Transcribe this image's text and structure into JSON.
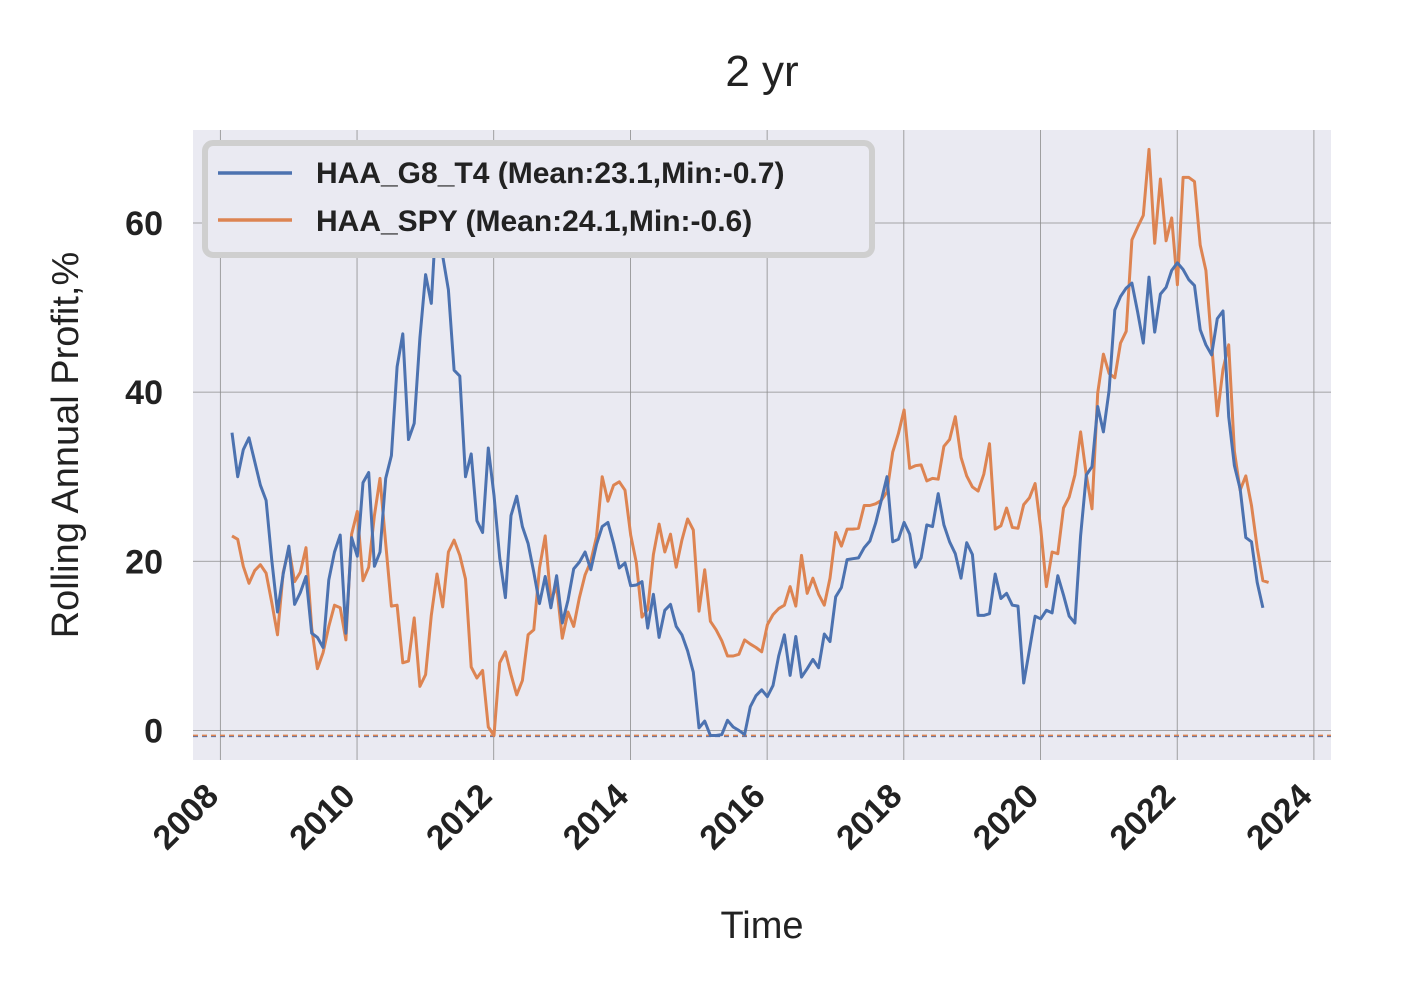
{
  "chart_data": {
    "type": "line",
    "title": "2 yr",
    "xlabel": "Time",
    "ylabel": "Rolling Annual Profit,%",
    "xlim": [
      2007.6,
      2024.25
    ],
    "ylim": [
      -3.5,
      71
    ],
    "xticks": [
      2008,
      2010,
      2012,
      2014,
      2016,
      2018,
      2020,
      2022,
      2024
    ],
    "yticks": [
      0,
      20,
      40,
      60
    ],
    "grid": true,
    "legend_position": "top-left",
    "colors": {
      "background": "#EAEAF2",
      "series1": "#4C72B0",
      "series2": "#DD8452",
      "grid": "#8c8c8c"
    },
    "hlines": [
      {
        "series": "HAA_G8_T4 (Mean:23.1,Min:-0.7)",
        "y": -0.7
      },
      {
        "series": "HAA_SPY (Mean:24.1,Min:-0.6)",
        "y": -0.6
      }
    ],
    "series": [
      {
        "name": "HAA_G8_T4 (Mean:23.1,Min:-0.7)",
        "x_start": 2008.17,
        "x_step": 0.0833333,
        "values": [
          35.2,
          30.0,
          33.2,
          34.6,
          31.8,
          29.0,
          27.2,
          20.1,
          14.0,
          18.5,
          21.8,
          14.9,
          16.3,
          18.2,
          11.5,
          11.0,
          9.8,
          17.8,
          21.1,
          23.1,
          11.5,
          22.8,
          20.6,
          29.3,
          30.5,
          19.4,
          21.1,
          29.8,
          32.5,
          43.0,
          46.9,
          34.4,
          36.3,
          46.4,
          53.9,
          50.5,
          62.5,
          56.1,
          52.1,
          42.6,
          41.9,
          30.0,
          32.7,
          24.8,
          23.4,
          33.4,
          27.8,
          20.4,
          15.7,
          25.4,
          27.7,
          24.1,
          22.1,
          18.7,
          15.0,
          18.2,
          14.5,
          18.3,
          12.7,
          15.4,
          19.1,
          19.9,
          21.1,
          19.0,
          22.0,
          24.1,
          24.6,
          22.1,
          19.2,
          19.8,
          17.1,
          17.2,
          17.6,
          12.1,
          16.1,
          11.0,
          14.2,
          14.9,
          12.3,
          11.3,
          9.4,
          6.9,
          0.3,
          1.1,
          -0.6,
          -0.6,
          -0.5,
          1.2,
          0.4,
          0.0,
          -0.5,
          2.8,
          4.1,
          4.8,
          4.0,
          5.3,
          8.8,
          11.3,
          6.5,
          11.1,
          6.3,
          7.3,
          8.4,
          7.4,
          11.4,
          10.5,
          15.8,
          16.9,
          20.2,
          20.3,
          20.4,
          21.6,
          22.4,
          24.5,
          27.2,
          30.0,
          22.3,
          22.6,
          24.6,
          23.2,
          19.3,
          20.4,
          24.3,
          24.1,
          28.0,
          24.3,
          22.3,
          20.9,
          18.0,
          22.2,
          20.8,
          13.6,
          13.6,
          13.8,
          18.5,
          15.6,
          16.2,
          14.8,
          14.7,
          5.6,
          9.5,
          13.5,
          13.2,
          14.2,
          13.9,
          18.3,
          16.0,
          13.5,
          12.7,
          23.0,
          30.2,
          31.2,
          38.3,
          35.3,
          40.2,
          49.7,
          51.3,
          52.3,
          52.9,
          49.5,
          45.8,
          53.6,
          47.1,
          51.6,
          52.4,
          54.4,
          55.3,
          54.5,
          53.3,
          52.6,
          47.4,
          45.6,
          44.4,
          48.7,
          49.6,
          37.1,
          31.3,
          28.6,
          22.8,
          22.3,
          17.5,
          14.5
        ]
      },
      {
        "name": "HAA_SPY (Mean:24.1,Min:-0.6)",
        "x_start": 2008.17,
        "x_step": 0.0833333,
        "values": [
          23.0,
          22.6,
          19.4,
          17.4,
          18.9,
          19.6,
          18.6,
          15.1,
          11.3,
          18.7,
          21.5,
          17.6,
          18.7,
          21.6,
          12.1,
          7.3,
          9.2,
          12.3,
          14.8,
          14.5,
          10.7,
          23.2,
          25.9,
          17.7,
          19.3,
          25.4,
          29.8,
          22.1,
          14.7,
          14.8,
          8.0,
          8.2,
          13.3,
          5.2,
          6.6,
          13.6,
          18.5,
          14.6,
          21.1,
          22.5,
          20.7,
          17.9,
          7.5,
          6.2,
          7.1,
          0.4,
          -0.6,
          8.0,
          9.3,
          6.6,
          4.2,
          5.9,
          11.3,
          11.9,
          19.2,
          23.0,
          15.3,
          17.1,
          10.9,
          14.0,
          12.3,
          15.7,
          18.4,
          20.0,
          22.9,
          30.0,
          27.1,
          29.0,
          29.4,
          28.4,
          23.1,
          19.8,
          13.4,
          14.3,
          20.8,
          24.4,
          21.1,
          23.2,
          19.3,
          22.5,
          25.0,
          23.7,
          14.1,
          19.0,
          12.9,
          11.9,
          10.6,
          8.8,
          8.8,
          9.0,
          10.7,
          10.2,
          9.8,
          9.3,
          12.5,
          13.7,
          14.4,
          14.8,
          17.0,
          14.7,
          20.7,
          16.2,
          18.0,
          16.1,
          14.8,
          18.0,
          23.4,
          21.8,
          23.8,
          23.8,
          23.9,
          26.6,
          26.6,
          26.8,
          27.2,
          28.2,
          32.9,
          35.1,
          37.9,
          31.0,
          31.3,
          31.4,
          29.5,
          29.8,
          29.7,
          33.6,
          34.4,
          37.1,
          32.3,
          30.1,
          28.8,
          28.3,
          30.3,
          33.9,
          23.8,
          24.2,
          26.3,
          24.0,
          23.9,
          26.7,
          27.5,
          29.2,
          23.9,
          17.0,
          21.1,
          20.9,
          26.3,
          27.6,
          30.2,
          35.3,
          30.2,
          26.2,
          39.9,
          44.5,
          42.2,
          41.7,
          45.8,
          47.2,
          58.0,
          59.5,
          60.9,
          68.7,
          57.6,
          65.2,
          57.9,
          60.6,
          52.7,
          65.4,
          65.4,
          64.9,
          57.4,
          54.4,
          45.8,
          37.2,
          42.7,
          45.6,
          33.0,
          28.4,
          30.1,
          26.6,
          21.6,
          17.7,
          17.5
        ]
      }
    ]
  }
}
